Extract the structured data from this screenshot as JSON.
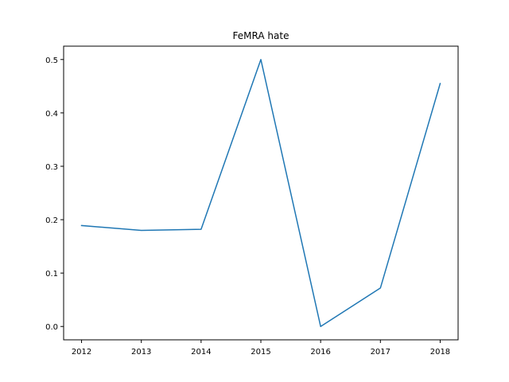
{
  "chart_data": {
    "type": "line",
    "title": "FeMRA hate",
    "xlabel": "",
    "ylabel": "",
    "x": [
      "2012",
      "2013",
      "2014",
      "2015",
      "2016",
      "2017",
      "2018"
    ],
    "series": [
      {
        "values": [
          0.189,
          0.18,
          0.182,
          0.5,
          0.0,
          0.072,
          0.455
        ],
        "color": "#1f77b4"
      }
    ],
    "y_ticks": [
      "0.0",
      "0.1",
      "0.2",
      "0.3",
      "0.4",
      "0.5"
    ],
    "xlim": [
      2011.7,
      2018.3
    ],
    "ylim": [
      -0.025,
      0.525
    ],
    "grid": false,
    "legend": "none"
  }
}
